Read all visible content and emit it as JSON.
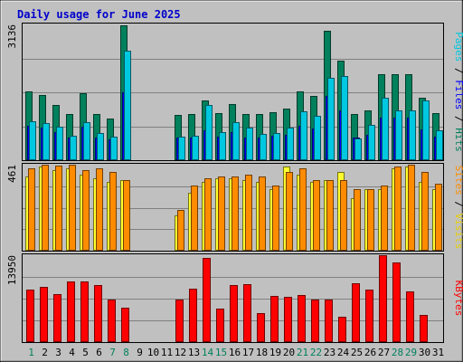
{
  "chart_data": {
    "type": "bar",
    "title": "Daily usage for June 2025",
    "days": [
      "1",
      "2",
      "3",
      "4",
      "5",
      "6",
      "7",
      "8",
      "9",
      "10",
      "11",
      "12",
      "13",
      "14",
      "15",
      "16",
      "17",
      "18",
      "19",
      "20",
      "21",
      "22",
      "23",
      "24",
      "25",
      "26",
      "27",
      "28",
      "29",
      "30",
      "31"
    ],
    "weekend_days": [
      1,
      7,
      8,
      14,
      15,
      21,
      22,
      28,
      29
    ],
    "colors": {
      "title": "#0000cc",
      "weekday_label": "#000000",
      "weekend_label": "#00805c",
      "grid": "#808080",
      "background": "#c0c0c0",
      "panel_border": "#000000",
      "legend_separator": "#000000"
    },
    "panels": [
      {
        "id": "traffic",
        "ymax_label": "3136",
        "ymax": 3136,
        "legend": [
          {
            "text": "Pages",
            "color": "#00c8e0"
          },
          {
            "text": "Files",
            "color": "#0000ff"
          },
          {
            "text": "Hits",
            "color": "#00805c"
          }
        ],
        "series": [
          {
            "name": "Hits",
            "color": "#00805c",
            "values": [
              1580,
              1500,
              1280,
              1060,
              1540,
              1060,
              960,
              3120,
              null,
              null,
              null,
              1040,
              1060,
              1380,
              1080,
              1290,
              1060,
              1060,
              1110,
              1190,
              1580,
              1480,
              2980,
              2300,
              1060,
              1150,
              1980,
              1980,
              1980,
              1440,
              1080
            ]
          },
          {
            "name": "Files",
            "color": "#0000ff",
            "values": [
              800,
              750,
              640,
              530,
              770,
              530,
              480,
              1560,
              null,
              null,
              null,
              520,
              530,
              690,
              540,
              645,
              530,
              530,
              555,
              595,
              790,
              740,
              1490,
              1150,
              530,
              575,
              990,
              990,
              990,
              720,
              540
            ]
          },
          {
            "name": "Pages",
            "color": "#00c8e0",
            "values": [
              900,
              860,
              780,
              560,
              870,
              620,
              540,
              2520,
              null,
              null,
              null,
              540,
              560,
              1270,
              650,
              880,
              750,
              610,
              620,
              750,
              1130,
              1030,
              1910,
              1950,
              500,
              810,
              1450,
              1140,
              1150,
              1390,
              690
            ]
          }
        ]
      },
      {
        "id": "sites",
        "ymax_label": "461",
        "ymax": 461,
        "legend": [
          {
            "text": "Sites",
            "color": "#ff8c00"
          },
          {
            "text": "Visits",
            "color": "#e8d000"
          }
        ],
        "series": [
          {
            "name": "Visits",
            "color": "#ffff30",
            "values": [
              400,
              450,
              430,
              440,
              410,
              390,
              370,
              380,
              null,
              null,
              null,
              190,
              310,
              370,
              390,
              390,
              380,
              370,
              330,
              450,
              410,
              370,
              380,
              420,
              280,
              330,
              330,
              440,
              450,
              370,
              330
            ]
          },
          {
            "name": "Sites",
            "color": "#ff8c00",
            "values": [
              440,
              461,
              455,
              460,
              430,
              440,
              420,
              380,
              null,
              null,
              null,
              220,
              350,
              390,
              400,
              400,
              410,
              400,
              350,
              420,
              440,
              380,
              380,
              380,
              330,
              330,
              350,
              450,
              461,
              420,
              360
            ]
          }
        ]
      },
      {
        "id": "kbytes",
        "ymax_label": "13950",
        "ymax": 13950,
        "legend": [
          {
            "text": "KBytes",
            "color": "#ff0000"
          }
        ],
        "series": [
          {
            "name": "KBytes",
            "color": "#ff0000",
            "values": [
              8500,
              8800,
              7700,
              9800,
              9700,
              9100,
              6900,
              5500,
              null,
              null,
              null,
              6900,
              8600,
              13500,
              5400,
              9100,
              9300,
              4700,
              7400,
              7300,
              7600,
              6900,
              6800,
              4100,
              9400,
              8500,
              13950,
              12800,
              8200,
              4300,
              null
            ]
          }
        ]
      }
    ]
  }
}
